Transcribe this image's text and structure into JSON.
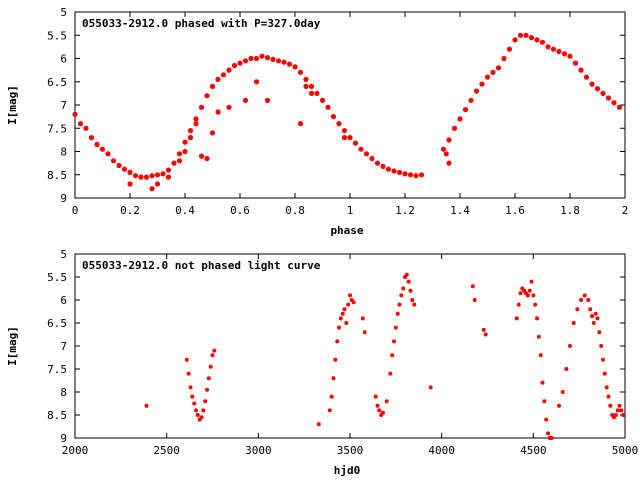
{
  "colors": {
    "points": "#ff0000",
    "axes": "#000000",
    "background": "#ffffff"
  },
  "chart_data": [
    {
      "type": "scatter",
      "title": "055033-2912.0 phased with P=327.0day",
      "xlabel": "phase",
      "ylabel": "I[mag]",
      "xlim": [
        0,
        2
      ],
      "ylim": [
        5,
        9
      ],
      "y_inverted": true,
      "grid": false,
      "xticks": [
        "0",
        "0.2",
        "0.4",
        "0.6",
        "0.8",
        "1",
        "1.2",
        "1.4",
        "1.6",
        "1.8",
        "2"
      ],
      "yticks": [
        "5",
        "5.5",
        "6",
        "6.5",
        "7",
        "7.5",
        "8",
        "8.5",
        "9"
      ],
      "series": [
        {
          "x": [
            0.0,
            0.02,
            0.04,
            0.06,
            0.08,
            0.1,
            0.12,
            0.14,
            0.16,
            0.18,
            0.2,
            0.22,
            0.24,
            0.26,
            0.28,
            0.3,
            0.32,
            0.34,
            0.36,
            0.38,
            0.4,
            0.42,
            0.44,
            0.46,
            0.48,
            0.5,
            0.52,
            0.54,
            0.56,
            0.58,
            0.6,
            0.62,
            0.64,
            0.66,
            0.68,
            0.7,
            0.72,
            0.74,
            0.76,
            0.78,
            0.8,
            0.82,
            0.84,
            0.86,
            0.88,
            0.9,
            0.92,
            0.94,
            0.96,
            0.98,
            1.0,
            1.02,
            1.04,
            1.06,
            1.08,
            1.1,
            1.12,
            1.14,
            1.16,
            1.18,
            1.2,
            1.22,
            1.24,
            1.26,
            1.34,
            1.36,
            1.38,
            1.4,
            1.42,
            1.44,
            1.46,
            1.48,
            1.5,
            1.52,
            1.54,
            1.56,
            1.58,
            1.6,
            1.62,
            1.64,
            1.66,
            1.68,
            1.7,
            1.72,
            1.74,
            1.76,
            1.78,
            1.8,
            1.82,
            1.84,
            1.86,
            1.88,
            1.9,
            1.92,
            1.94,
            1.96,
            1.98,
            0.2,
            0.28,
            0.3,
            0.34,
            0.38,
            0.4,
            0.42,
            0.44,
            0.46,
            0.48,
            0.5,
            0.52,
            0.56,
            0.62,
            0.66,
            0.7,
            0.82,
            0.84,
            0.86,
            0.98,
            1.35,
            1.36
          ],
          "y": [
            7.2,
            7.4,
            7.5,
            7.7,
            7.85,
            7.95,
            8.05,
            8.2,
            8.3,
            8.38,
            8.45,
            8.52,
            8.55,
            8.55,
            8.52,
            8.5,
            8.48,
            8.4,
            8.25,
            8.05,
            7.8,
            7.55,
            7.3,
            7.05,
            6.8,
            6.6,
            6.45,
            6.35,
            6.25,
            6.15,
            6.1,
            6.05,
            6.0,
            6.0,
            5.95,
            5.98,
            6.02,
            6.05,
            6.08,
            6.12,
            6.18,
            6.3,
            6.45,
            6.6,
            6.75,
            6.9,
            7.05,
            7.25,
            7.4,
            7.55,
            7.7,
            7.82,
            7.95,
            8.05,
            8.15,
            8.25,
            8.32,
            8.38,
            8.42,
            8.45,
            8.48,
            8.5,
            8.52,
            8.5,
            7.95,
            7.75,
            7.5,
            7.3,
            7.1,
            6.9,
            6.7,
            6.55,
            6.4,
            6.3,
            6.2,
            6.0,
            5.8,
            5.6,
            5.5,
            5.5,
            5.55,
            5.6,
            5.65,
            5.75,
            5.8,
            5.85,
            5.9,
            5.95,
            6.1,
            6.25,
            6.4,
            6.55,
            6.65,
            6.75,
            6.85,
            6.95,
            7.05,
            8.7,
            8.8,
            8.7,
            8.55,
            8.2,
            8.0,
            7.7,
            7.4,
            8.1,
            8.15,
            7.6,
            7.15,
            7.05,
            6.9,
            6.5,
            6.9,
            7.4,
            6.6,
            6.75,
            7.7,
            8.05,
            8.25
          ]
        }
      ]
    },
    {
      "type": "scatter",
      "title": "055033-2912.0 not phased light curve",
      "xlabel": "hjd0",
      "ylabel": "I[mag]",
      "xlim": [
        2000,
        5000
      ],
      "ylim": [
        5,
        9
      ],
      "y_inverted": true,
      "grid": false,
      "xticks": [
        "2000",
        "2500",
        "3000",
        "3500",
        "4000",
        "4500",
        "5000"
      ],
      "yticks": [
        "5",
        "5.5",
        "6",
        "6.5",
        "7",
        "7.5",
        "8",
        "8.5",
        "9"
      ],
      "series": [
        {
          "x": [
            2390,
            2610,
            2620,
            2630,
            2640,
            2650,
            2660,
            2670,
            2680,
            2690,
            2700,
            2710,
            2720,
            2730,
            2740,
            2750,
            2760,
            3330,
            3390,
            3400,
            3410,
            3420,
            3430,
            3440,
            3450,
            3460,
            3470,
            3480,
            3490,
            3500,
            3510,
            3520,
            3570,
            3580,
            3640,
            3650,
            3660,
            3670,
            3680,
            3700,
            3720,
            3730,
            3740,
            3750,
            3760,
            3770,
            3780,
            3790,
            3800,
            3810,
            3820,
            3830,
            3840,
            3850,
            3940,
            4170,
            4180,
            4230,
            4240,
            4410,
            4420,
            4430,
            4440,
            4450,
            4460,
            4470,
            4480,
            4490,
            4500,
            4510,
            4520,
            4530,
            4540,
            4550,
            4560,
            4570,
            4580,
            4590,
            4600,
            4640,
            4660,
            4680,
            4700,
            4720,
            4740,
            4760,
            4780,
            4800,
            4810,
            4820,
            4830,
            4840,
            4850,
            4860,
            4870,
            4880,
            4890,
            4900,
            4910,
            4920,
            4930,
            4940,
            4950,
            4960,
            4970,
            4980,
            4990
          ],
          "y": [
            8.3,
            7.3,
            7.6,
            7.9,
            8.1,
            8.25,
            8.4,
            8.5,
            8.6,
            8.55,
            8.4,
            8.2,
            7.95,
            7.7,
            7.45,
            7.2,
            7.1,
            8.7,
            8.4,
            8.1,
            7.7,
            7.3,
            6.9,
            6.6,
            6.4,
            6.3,
            6.2,
            6.5,
            6.1,
            5.9,
            6.0,
            6.05,
            6.4,
            6.7,
            8.1,
            8.3,
            8.4,
            8.5,
            8.45,
            8.2,
            7.6,
            7.2,
            6.9,
            6.6,
            6.3,
            6.1,
            5.9,
            5.75,
            5.5,
            5.45,
            5.6,
            5.8,
            6.0,
            6.1,
            7.9,
            5.7,
            6.0,
            6.65,
            6.75,
            6.4,
            6.1,
            5.85,
            5.75,
            5.8,
            5.85,
            5.9,
            5.8,
            5.6,
            5.9,
            6.1,
            6.4,
            6.8,
            7.2,
            7.8,
            8.2,
            8.6,
            8.9,
            9.0,
            9.0,
            8.3,
            8.0,
            7.5,
            7.0,
            6.5,
            6.2,
            6.0,
            5.9,
            6.0,
            6.2,
            6.35,
            6.5,
            6.3,
            6.4,
            6.7,
            7.0,
            7.3,
            7.6,
            7.9,
            8.1,
            8.3,
            8.5,
            8.55,
            8.5,
            8.4,
            8.3,
            8.4,
            8.5
          ]
        }
      ]
    }
  ]
}
